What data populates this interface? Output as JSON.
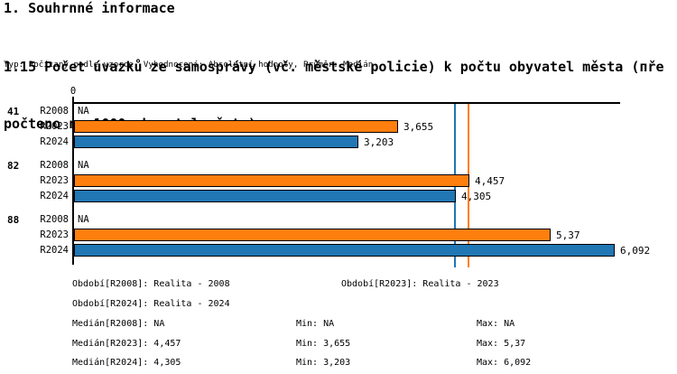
{
  "page": {
    "heading": "1. Souhrnné informace",
    "title_lines": [
      "1.15 Počet úvazků ze samosprávy (vč. městské policie) k počtu obyvatel města (пře",
      "počteno na 1000 obyvatel města)"
    ],
    "title_full": "1.15 Počet úvazků ze samosprávy (vč. městské policie) k počtu obyvatel města (přepočteno na 1000 obyvatel města)",
    "subtitle": "Typ: Počítaný podle vzorce, Vyhodnocení: Absolutní hodnoty, Průměr: Medián"
  },
  "chart_data": {
    "type": "bar",
    "orientation": "horizontal",
    "title": "1.15 Počet úvazků ze samosprávy (vč. městské policie) k počtu obyvatel města (přepočteno na 1000 obyvatel města)",
    "xlabel": "",
    "ylabel": "",
    "x_axis": {
      "min": 0,
      "max": 6.16,
      "tick_labels": [
        "0"
      ],
      "gridlines": false
    },
    "series_colors": {
      "R2008": "#ffffff",
      "R2023": "#ff7f0e",
      "R2024": "#2077b4"
    },
    "groups": [
      {
        "label": "41",
        "rows": [
          {
            "series": "R2008",
            "value": null,
            "display": "NA"
          },
          {
            "series": "R2023",
            "value": 3.655,
            "display": "3,655"
          },
          {
            "series": "R2024",
            "value": 3.203,
            "display": "3,203"
          }
        ]
      },
      {
        "label": "82",
        "rows": [
          {
            "series": "R2008",
            "value": null,
            "display": "NA"
          },
          {
            "series": "R2023",
            "value": 4.457,
            "display": "4,457"
          },
          {
            "series": "R2024",
            "value": 4.305,
            "display": "4,305"
          }
        ]
      },
      {
        "label": "88",
        "rows": [
          {
            "series": "R2008",
            "value": null,
            "display": "NA"
          },
          {
            "series": "R2023",
            "value": 5.37,
            "display": "5,37"
          },
          {
            "series": "R2024",
            "value": 6.092,
            "display": "6,092"
          }
        ]
      }
    ],
    "reference_lines": [
      {
        "series": "R2023",
        "value": 4.457,
        "color": "#ff7f0e",
        "meaning": "Medián R2023"
      },
      {
        "series": "R2024",
        "value": 4.305,
        "color": "#2077b4",
        "meaning": "Medián R2024"
      }
    ]
  },
  "legend": {
    "period_r2008": "Období[R2008]: Realita - 2008",
    "period_r2023": "Období[R2023]: Realita - 2023",
    "period_r2024": "Období[R2024]: Realita - 2024",
    "median_r2008": "Medián[R2008]: NA",
    "min_r2008": "Min: NA",
    "max_r2008": "Max: NA",
    "median_r2023": "Medián[R2023]: 4,457",
    "min_r2023": "Min: 3,655",
    "max_r2023": "Max: 5,37",
    "median_r2024": "Medián[R2024]: 4,305",
    "min_r2024": "Min: 3,203",
    "max_r2024": "Max: 6,092"
  }
}
